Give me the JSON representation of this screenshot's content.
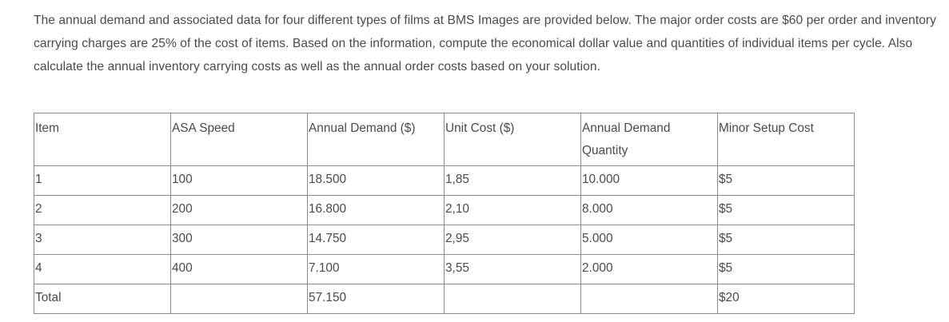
{
  "intro": {
    "text": "The annual demand and associated data for four different types of films at BMS Images are provided below. The major order costs are $60 per order and inventory carrying charges are 25% of the cost of items. Based on the information, compute the economical dollar value and quantities of individual items per cycle. Also calculate the annual inventory carrying costs as well as the annual order costs based on your solution."
  },
  "table": {
    "headers": [
      "Item",
      "ASA Speed",
      "Annual Demand ($)",
      "Unit Cost ($)",
      "Annual Demand Quantity",
      "Minor Setup Cost"
    ],
    "rows": [
      [
        "1",
        "100",
        "18.500",
        "1,85",
        "10.000",
        "$5"
      ],
      [
        "2",
        "200",
        "16.800",
        "2,10",
        "8.000",
        "$5"
      ],
      [
        "3",
        "300",
        "14.750",
        "2,95",
        "5.000",
        "$5"
      ],
      [
        "4",
        "400",
        "7.100",
        "3,55",
        "2.000",
        "$5"
      ],
      [
        "Total",
        "",
        "57.150",
        "",
        "",
        "$20"
      ]
    ]
  }
}
